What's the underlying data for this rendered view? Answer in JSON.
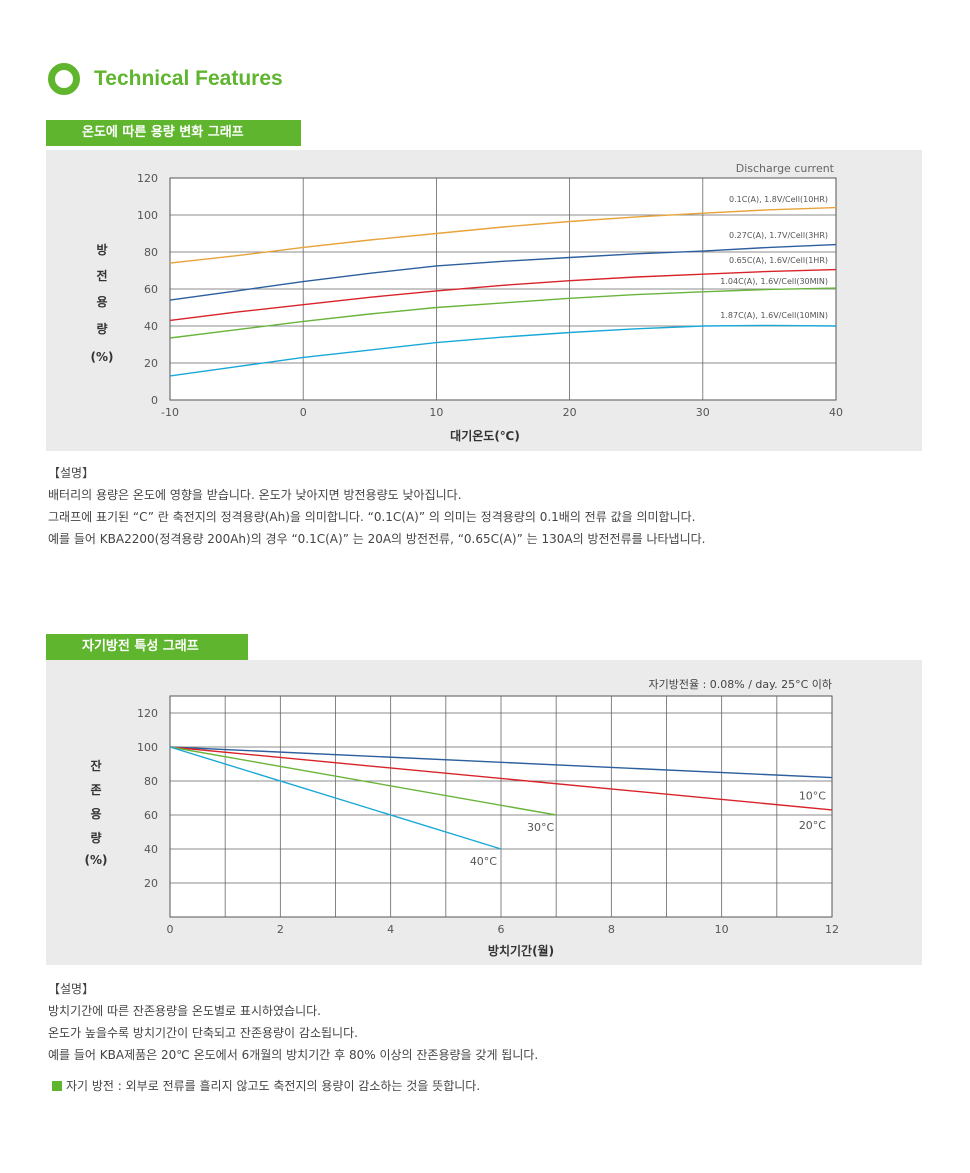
{
  "heading": {
    "title": "Technical Features"
  },
  "section1": {
    "tab": "온도에 따른 용량 변화 그래프",
    "notes_title": "【설명】",
    "notes": [
      "배터리의 용량은 온도에 영향을 받습니다. 온도가 낮아지면 방전용량도 낮아집니다.",
      "그래프에 표기된 “C” 란 축전지의 정격용량(Ah)을 의미합니다. “0.1C(A)” 의 의미는 정격용량의 0.1배의 전류 값을 의미합니다.",
      "예를 들어 KBA2200(정격용량 200Ah)의 경우 “0.1C(A)” 는 20A의 방전전류, “0.65C(A)” 는 130A의 방전전류를 나타냅니다."
    ]
  },
  "section2": {
    "tab": "자기방전 특성 그래프",
    "notes_title": "【설명】",
    "notes": [
      "방치기간에 따른 잔존용량을 온도별로 표시하였습니다.",
      "온도가 높을수록 방치기간이 단축되고 잔존용량이 감소됩니다.",
      "예를 들어 KBA제품은 20℃ 온도에서 6개월의 방치기간 후 80% 이상의 잔존용량을 갖게 됩니다."
    ],
    "bullet": "자기 방전 : 외부로 전류를 흘리지 않고도 축전지의 용량이 감소하는 것을 뜻합니다."
  },
  "chart_data": [
    {
      "type": "line",
      "annotation": "Discharge current",
      "xlabel": "대기온도(℃)",
      "ylabel": [
        "방",
        "전",
        "용",
        "량",
        "(%)"
      ],
      "xlim": [
        -10,
        40
      ],
      "ylim": [
        0,
        120
      ],
      "xticks": [
        -10,
        0,
        10,
        20,
        30,
        40
      ],
      "yticks": [
        0,
        20,
        40,
        60,
        80,
        100,
        120
      ],
      "grid": true,
      "series": [
        {
          "name": "0.1C(A), 1.8V/Cell(10HR)",
          "color": "#e8a33a",
          "x": [
            -10,
            -5,
            0,
            5,
            10,
            15,
            20,
            25,
            30,
            35,
            40
          ],
          "y": [
            74,
            78,
            82.5,
            86.5,
            90,
            93.5,
            96.5,
            99,
            101,
            102.8,
            104
          ]
        },
        {
          "name": "0.27C(A), 1.7V/Cell(3HR)",
          "color": "#2d5f9e",
          "x": [
            -10,
            -5,
            0,
            5,
            10,
            15,
            20,
            25,
            30,
            35,
            40
          ],
          "y": [
            54,
            59,
            64,
            68.5,
            72.5,
            75,
            77,
            79,
            80.5,
            82.5,
            84
          ]
        },
        {
          "name": "0.65C(A), 1.6V/Cell(1HR)",
          "color": "#d8232a",
          "x": [
            -10,
            -5,
            0,
            5,
            10,
            15,
            20,
            25,
            30,
            35,
            40
          ],
          "y": [
            43,
            47.5,
            51.5,
            55.5,
            59,
            62,
            64.5,
            66.5,
            68,
            69.5,
            70.5
          ]
        },
        {
          "name": "1.04C(A), 1.6V/Cell(30MIN)",
          "color": "#6ab43b",
          "x": [
            -10,
            -5,
            0,
            5,
            10,
            15,
            20,
            25,
            30,
            35,
            40
          ],
          "y": [
            33.5,
            38,
            42.5,
            46.5,
            50,
            52.5,
            55,
            57,
            58.5,
            59.8,
            60.5
          ]
        },
        {
          "name": "1.87C(A), 1.6V/Cell(10MIN)",
          "color": "#1aa8d8",
          "x": [
            -10,
            -5,
            0,
            5,
            10,
            15,
            20,
            25,
            30,
            35,
            40
          ],
          "y": [
            13,
            18,
            23,
            27,
            31,
            34,
            36.5,
            38.5,
            40,
            40.3,
            40
          ]
        }
      ]
    },
    {
      "type": "line",
      "annotation": "자기방전율 : 0.08% / day. 25°C 이하",
      "xlabel": "방치기간(월)",
      "ylabel": [
        "잔",
        "존",
        "용",
        "량",
        "(%)"
      ],
      "xlim": [
        0,
        12
      ],
      "ylim": [
        0,
        130
      ],
      "xticks": [
        0,
        2,
        4,
        6,
        8,
        10,
        12
      ],
      "yticks": [
        20,
        40,
        60,
        80,
        100,
        120
      ],
      "grid": true,
      "series": [
        {
          "name": "10°C",
          "color": "#2d5f9e",
          "x": [
            0,
            12
          ],
          "y": [
            100,
            82
          ]
        },
        {
          "name": "20°C",
          "color": "#d8232a",
          "x": [
            0,
            12
          ],
          "y": [
            100,
            63
          ]
        },
        {
          "name": "30°C",
          "color": "#6ab43b",
          "x": [
            0,
            7
          ],
          "y": [
            100,
            60
          ]
        },
        {
          "name": "40°C",
          "color": "#1aa8d8",
          "x": [
            0,
            6
          ],
          "y": [
            100,
            40
          ]
        }
      ]
    }
  ]
}
